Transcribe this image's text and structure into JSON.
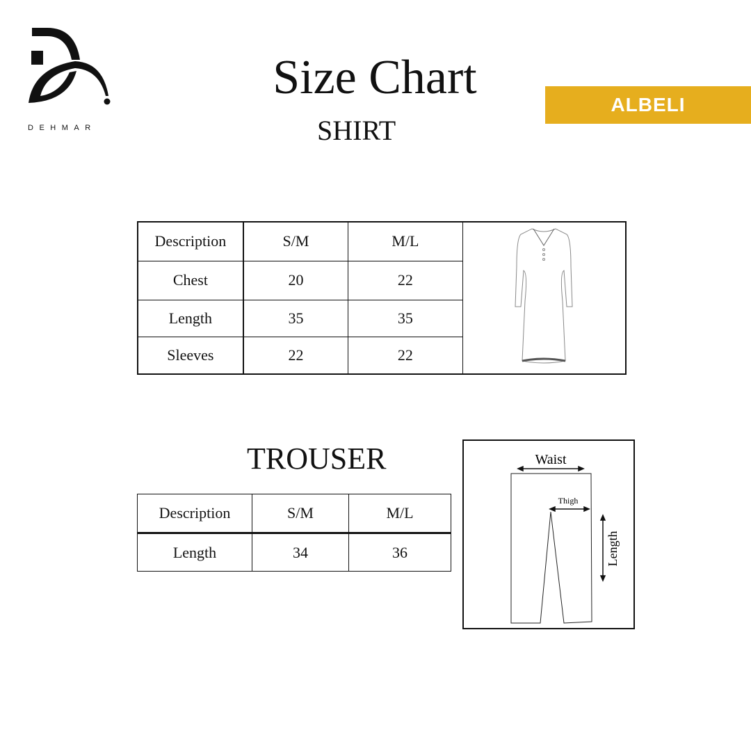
{
  "brand": {
    "name": "DEHMAR",
    "badge": "ALBELI",
    "badge_color": "#e6ae1e"
  },
  "header": {
    "title": "Size Chart",
    "subtitle": "SHIRT"
  },
  "shirt_table": {
    "columns": [
      "Description",
      "S/M",
      "M/L"
    ],
    "rows": [
      [
        "Chest",
        "20",
        "22"
      ],
      [
        "Length",
        "35",
        "35"
      ],
      [
        "Sleeves",
        "22",
        "22"
      ]
    ],
    "image": "shirt-sketch-icon"
  },
  "trouser": {
    "title": "TROUSER",
    "columns": [
      "Description",
      "S/M",
      "M/L"
    ],
    "rows": [
      [
        "Length",
        "34",
        "36"
      ]
    ],
    "diagram": {
      "waist": "Waist",
      "thigh": "Thigh",
      "length": "Length"
    }
  }
}
